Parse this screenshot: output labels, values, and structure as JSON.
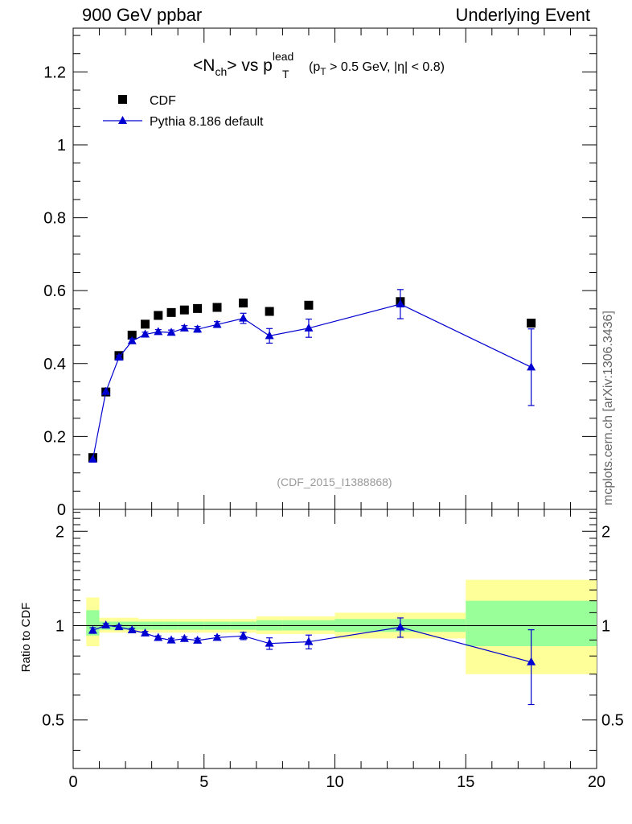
{
  "header": {
    "left": "900 GeV ppbar",
    "right": "Underlying Event"
  },
  "side_label": "mcplots.cern.ch [arXiv:1306.3436]",
  "chart_data": [
    {
      "type": "scatter",
      "title": "<N_ch> vs p_T^lead (p_T > 0.5 GeV, |η| < 0.8)",
      "title_parts": {
        "main_a": "<N",
        "main_sub": "ch",
        "main_b": "> vs p",
        "main_sup": "lead",
        "main_sub2": "T",
        "cut_a": "(p",
        "cut_sub": "T",
        "cut_b": " > 0.5 GeV, |η| < 0.8)"
      },
      "watermark": "(CDF_2015_I1388868)",
      "xlim": [
        0,
        20
      ],
      "ylim": [
        0,
        1.32
      ],
      "x_ticks": [
        0,
        5,
        10,
        15,
        20
      ],
      "y_ticks": [
        0.2,
        0.4,
        0.6,
        0.8,
        1,
        1.2
      ],
      "y_tick_labels": [
        "0.2",
        "0.4",
        "0.6",
        "0.8",
        "1",
        "1.2"
      ],
      "y_zero_label": "0",
      "legend_position": "top-left",
      "colors": {
        "data": "#000000",
        "mc": "#0000d0"
      },
      "series": [
        {
          "name": "CDF",
          "marker": "square",
          "x": [
            0.75,
            1.25,
            1.75,
            2.25,
            2.75,
            3.25,
            3.75,
            4.25,
            4.75,
            5.5,
            6.5,
            7.5,
            9.0,
            12.5,
            17.5
          ],
          "y": [
            0.142,
            0.322,
            0.422,
            0.478,
            0.508,
            0.532,
            0.54,
            0.547,
            0.551,
            0.554,
            0.566,
            0.543,
            0.56,
            0.57,
            0.511
          ]
        },
        {
          "name": "Pythia 8.186 default",
          "marker": "triangle",
          "x": [
            0.75,
            1.25,
            1.75,
            2.25,
            2.75,
            3.25,
            3.75,
            4.25,
            4.75,
            5.5,
            6.5,
            7.5,
            9.0,
            12.5,
            17.5
          ],
          "y": [
            0.137,
            0.323,
            0.417,
            0.462,
            0.48,
            0.487,
            0.485,
            0.497,
            0.494,
            0.507,
            0.524,
            0.476,
            0.497,
            0.563,
            0.39
          ],
          "yerr": [
            0.003,
            0.004,
            0.005,
            0.006,
            0.006,
            0.006,
            0.007,
            0.007,
            0.008,
            0.008,
            0.014,
            0.02,
            0.025,
            0.04,
            0.105
          ]
        }
      ]
    },
    {
      "type": "scatter",
      "ylabel": "Ratio to CDF",
      "xlim": [
        0,
        20
      ],
      "ylim": [
        0.35,
        2.35
      ],
      "x_ticks": [
        0,
        5,
        10,
        15,
        20
      ],
      "x_tick_labels": [
        "0",
        "5",
        "10",
        "15",
        "20"
      ],
      "y_ticks": [
        0.5,
        1,
        2
      ],
      "y_tick_labels": [
        "0.5",
        "1",
        "2"
      ],
      "reference_line": 1,
      "colors": {
        "band_outer": "#ffff99",
        "band_inner": "#99ff99",
        "mc": "#0000d0"
      },
      "bands": [
        {
          "x0": 0.5,
          "x1": 1.0,
          "outer": [
            0.86,
            1.23
          ],
          "inner": [
            0.93,
            1.12
          ]
        },
        {
          "x0": 1.0,
          "x1": 1.5,
          "outer": [
            0.95,
            1.06
          ],
          "inner": [
            0.97,
            1.03
          ]
        },
        {
          "x0": 1.5,
          "x1": 2.0,
          "outer": [
            0.95,
            1.06
          ],
          "inner": [
            0.97,
            1.03
          ]
        },
        {
          "x0": 2.0,
          "x1": 2.5,
          "outer": [
            0.95,
            1.06
          ],
          "inner": [
            0.97,
            1.03
          ]
        },
        {
          "x0": 2.5,
          "x1": 3.0,
          "outer": [
            0.95,
            1.05
          ],
          "inner": [
            0.97,
            1.03
          ]
        },
        {
          "x0": 3.0,
          "x1": 3.5,
          "outer": [
            0.95,
            1.05
          ],
          "inner": [
            0.97,
            1.03
          ]
        },
        {
          "x0": 3.5,
          "x1": 4.0,
          "outer": [
            0.95,
            1.05
          ],
          "inner": [
            0.97,
            1.03
          ]
        },
        {
          "x0": 4.0,
          "x1": 4.5,
          "outer": [
            0.95,
            1.05
          ],
          "inner": [
            0.97,
            1.03
          ]
        },
        {
          "x0": 4.5,
          "x1": 5.0,
          "outer": [
            0.95,
            1.05
          ],
          "inner": [
            0.97,
            1.03
          ]
        },
        {
          "x0": 5.0,
          "x1": 6.0,
          "outer": [
            0.95,
            1.05
          ],
          "inner": [
            0.97,
            1.03
          ]
        },
        {
          "x0": 6.0,
          "x1": 7.0,
          "outer": [
            0.95,
            1.05
          ],
          "inner": [
            0.97,
            1.03
          ]
        },
        {
          "x0": 7.0,
          "x1": 8.0,
          "outer": [
            0.94,
            1.07
          ],
          "inner": [
            0.965,
            1.04
          ]
        },
        {
          "x0": 8.0,
          "x1": 10.0,
          "outer": [
            0.94,
            1.07
          ],
          "inner": [
            0.965,
            1.04
          ]
        },
        {
          "x0": 10.0,
          "x1": 15.0,
          "outer": [
            0.91,
            1.1
          ],
          "inner": [
            0.955,
            1.05
          ]
        },
        {
          "x0": 15.0,
          "x1": 20.0,
          "outer": [
            0.7,
            1.4
          ],
          "inner": [
            0.86,
            1.2
          ]
        }
      ],
      "series": [
        {
          "name": "Pythia 8.186 default",
          "marker": "triangle",
          "x": [
            0.75,
            1.25,
            1.75,
            2.25,
            2.75,
            3.25,
            3.75,
            4.25,
            4.75,
            5.5,
            6.5,
            7.5,
            9.0,
            12.5,
            17.5
          ],
          "y": [
            0.965,
            1.003,
            0.99,
            0.968,
            0.946,
            0.915,
            0.898,
            0.908,
            0.897,
            0.916,
            0.927,
            0.877,
            0.888,
            0.988,
            0.765
          ],
          "yerr": [
            0.02,
            0.012,
            0.012,
            0.012,
            0.012,
            0.012,
            0.013,
            0.013,
            0.014,
            0.015,
            0.025,
            0.037,
            0.045,
            0.07,
            0.205
          ]
        }
      ]
    }
  ]
}
